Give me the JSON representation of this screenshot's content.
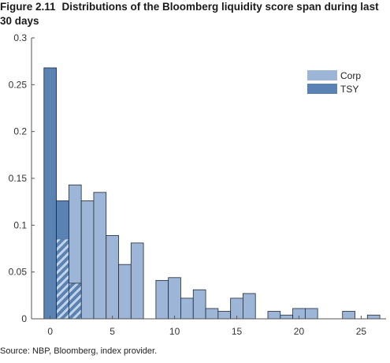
{
  "figure": {
    "label": "Figure 2.11",
    "title": "Distributions of the Bloomberg liquidity score span during last 30 days",
    "source": "Source: NBP, Bloomberg, index provider."
  },
  "chart_data": {
    "type": "bar",
    "title": "Distributions of the Bloomberg liquidity score span during last 30 days",
    "xlabel": "",
    "ylabel": "",
    "xlim": [
      -1.5,
      27
    ],
    "ylim": [
      0,
      0.3
    ],
    "x_ticks": [
      0,
      5,
      10,
      15,
      20,
      25
    ],
    "y_ticks": [
      0,
      0.05,
      0.1,
      0.15,
      0.2,
      0.25,
      0.3
    ],
    "x_tick_labels": [
      "0",
      "5",
      "10",
      "15",
      "20",
      "25"
    ],
    "y_tick_labels": [
      "0",
      "0.05",
      "0.1",
      "0.15",
      "0.2",
      "0.25",
      "0.3"
    ],
    "grid": false,
    "legend_position": "top-right",
    "bin_width": 1,
    "series": [
      {
        "name": "Corp",
        "color": "#9db5d6",
        "bins": [
          {
            "x": 1,
            "y": 0.085
          },
          {
            "x": 2,
            "y": 0.143
          },
          {
            "x": 3,
            "y": 0.126
          },
          {
            "x": 4,
            "y": 0.135
          },
          {
            "x": 5,
            "y": 0.089
          },
          {
            "x": 6,
            "y": 0.058
          },
          {
            "x": 7,
            "y": 0.081
          },
          {
            "x": 9,
            "y": 0.041
          },
          {
            "x": 10,
            "y": 0.044
          },
          {
            "x": 11,
            "y": 0.022
          },
          {
            "x": 12,
            "y": 0.031
          },
          {
            "x": 13,
            "y": 0.011
          },
          {
            "x": 14,
            "y": 0.008
          },
          {
            "x": 15,
            "y": 0.022
          },
          {
            "x": 16,
            "y": 0.027
          },
          {
            "x": 18,
            "y": 0.008
          },
          {
            "x": 19,
            "y": 0.004
          },
          {
            "x": 20,
            "y": 0.011
          },
          {
            "x": 21,
            "y": 0.011
          },
          {
            "x": 24,
            "y": 0.008
          },
          {
            "x": 26,
            "y": 0.004
          }
        ]
      },
      {
        "name": "TSY",
        "color": "#5a82b3",
        "bins": [
          {
            "x": 0,
            "y": 0.268
          },
          {
            "x": 1,
            "y": 0.126
          },
          {
            "x": 2,
            "y": 0.038
          }
        ]
      }
    ]
  }
}
